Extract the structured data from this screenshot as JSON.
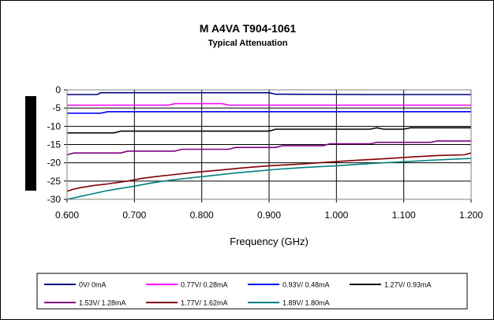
{
  "chart_data": {
    "type": "line",
    "title": "M A4VA T904-1061",
    "subtitle": "Typical Attenuation",
    "xlabel": "Frequency (GHz)",
    "ylabel": "",
    "xlim": [
      0.6,
      1.2
    ],
    "ylim": [
      -30,
      0
    ],
    "x_ticks": [
      "0.600",
      "0.700",
      "0.800",
      "0.900",
      "1.000",
      "1.100",
      "1.200"
    ],
    "y_ticks": [
      "0",
      "-5",
      "-10",
      "-15",
      "-20",
      "-25",
      "-30"
    ],
    "grid": true,
    "legend_position": "bottom",
    "series": [
      {
        "name": "0V/ 0mA",
        "color": "#000080",
        "x": [
          0.6,
          0.645,
          0.65,
          0.9,
          0.91,
          1.05,
          1.2
        ],
        "y": [
          -1.3,
          -1.3,
          -0.8,
          -0.8,
          -1.2,
          -1.3,
          -1.3
        ]
      },
      {
        "name": "0.77V/ 0.28mA",
        "color": "#ff00ff",
        "x": [
          0.6,
          0.75,
          0.76,
          0.83,
          0.84,
          1.2
        ],
        "y": [
          -4.2,
          -4.2,
          -3.8,
          -3.8,
          -4.2,
          -4.2
        ]
      },
      {
        "name": "0.93V/ 0.48mA",
        "color": "#0000ff",
        "x": [
          0.6,
          0.65,
          0.66,
          1.2
        ],
        "y": [
          -6.4,
          -6.4,
          -6.0,
          -6.0
        ]
      },
      {
        "name": "1.27V/ 0.93mA",
        "color": "#000000",
        "x": [
          0.6,
          0.67,
          0.68,
          0.9,
          0.91,
          1.05,
          1.06,
          1.07,
          1.1,
          1.11,
          1.2
        ],
        "y": [
          -11.8,
          -11.8,
          -11.3,
          -11.3,
          -10.8,
          -10.8,
          -10.4,
          -10.8,
          -10.8,
          -10.4,
          -10.4
        ]
      },
      {
        "name": "1.53V/ 1.28mA",
        "color": "#800080",
        "x": [
          0.6,
          0.61,
          0.68,
          0.69,
          0.76,
          0.77,
          0.84,
          0.85,
          0.91,
          0.92,
          0.98,
          0.99,
          1.05,
          1.06,
          1.14,
          1.15,
          1.2
        ],
        "y": [
          -17.8,
          -17.3,
          -17.3,
          -16.8,
          -16.8,
          -16.3,
          -16.3,
          -15.8,
          -15.8,
          -15.3,
          -15.3,
          -14.8,
          -14.8,
          -14.4,
          -14.4,
          -14.0,
          -14.0
        ]
      },
      {
        "name": "1.77V/ 1.62mA",
        "color": "#800000",
        "x": [
          0.6,
          0.61,
          0.62,
          0.64,
          0.66,
          0.69,
          0.71,
          0.73,
          0.76,
          0.79,
          0.82,
          0.86,
          0.9,
          0.95,
          0.99,
          1.03,
          1.07,
          1.11,
          1.15,
          1.19,
          1.2
        ],
        "y": [
          -27.8,
          -27.2,
          -26.8,
          -26.2,
          -25.8,
          -25.0,
          -24.3,
          -23.8,
          -23.2,
          -22.6,
          -22.1,
          -21.4,
          -20.8,
          -20.3,
          -19.8,
          -19.3,
          -18.9,
          -18.4,
          -18.0,
          -17.8,
          -17.3
        ]
      },
      {
        "name": "1.89V/ 1.80mA",
        "color": "#008080",
        "x": [
          0.6,
          0.62,
          0.64,
          0.66,
          0.68,
          0.7,
          0.72,
          0.74,
          0.76,
          0.79,
          0.82,
          0.85,
          0.88,
          0.91,
          0.95,
          1.0,
          1.05,
          1.1,
          1.15,
          1.2
        ],
        "y": [
          -30.0,
          -29.2,
          -28.4,
          -27.6,
          -27.0,
          -26.4,
          -25.7,
          -25.1,
          -24.6,
          -24.0,
          -23.4,
          -22.8,
          -22.3,
          -21.8,
          -21.3,
          -20.8,
          -20.2,
          -19.7,
          -19.2,
          -18.8
        ]
      }
    ]
  }
}
